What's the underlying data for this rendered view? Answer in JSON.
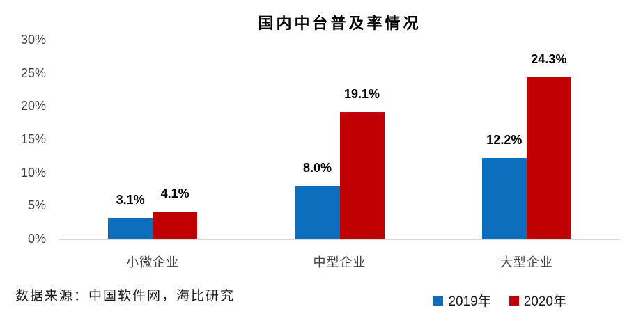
{
  "chart": {
    "title": "国内中台普及率情况"
  },
  "chart_data": {
    "type": "bar",
    "title": "国内中台普及率情况",
    "categories": [
      "小微企业",
      "中型企业",
      "大型企业"
    ],
    "series": [
      {
        "name": "2019年",
        "color": "#0c6ebd",
        "values": [
          3.1,
          8.0,
          12.2
        ],
        "labels": [
          "3.1%",
          "8.0%",
          "12.2%"
        ]
      },
      {
        "name": "2020年",
        "color": "#c00000",
        "values": [
          4.1,
          19.1,
          24.3
        ],
        "labels": [
          "4.1%",
          "19.1%",
          "24.3%"
        ]
      }
    ],
    "xlabel": "",
    "ylabel": "",
    "ylim": [
      0,
      30
    ],
    "yticks": [
      {
        "value": 0,
        "label": "0%"
      },
      {
        "value": 5,
        "label": "5%"
      },
      {
        "value": 10,
        "label": "10%"
      },
      {
        "value": 15,
        "label": "15%"
      },
      {
        "value": 20,
        "label": "20%"
      },
      {
        "value": 25,
        "label": "25%"
      },
      {
        "value": 30,
        "label": "30%"
      }
    ],
    "grid": false,
    "legend_position": "bottom-right",
    "axis_line_color": "#d9d9d9"
  },
  "footer": {
    "source": "数据来源：中国软件网，海比研究"
  }
}
